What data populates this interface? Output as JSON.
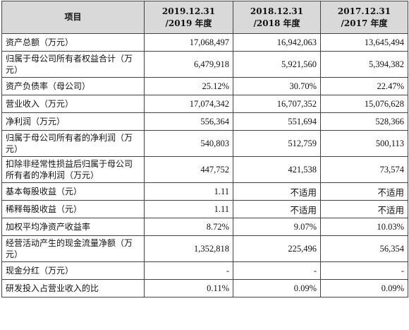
{
  "header": {
    "item_label": "项目",
    "columns": [
      {
        "line1": "2019.12.31",
        "line2": "/2019 年度"
      },
      {
        "line1": "2018.12.31",
        "line2": "/2018 年度"
      },
      {
        "line1": "2017.12.31",
        "line2": "/2017 年度"
      }
    ]
  },
  "rows": [
    {
      "label": "资产总额（万元）",
      "values": [
        "17,068,497",
        "16,942,063",
        "13,645,494"
      ]
    },
    {
      "label": "归属于母公司所有者权益合计（万元）",
      "values": [
        "6,479,918",
        "5,921,560",
        "5,394,382"
      ]
    },
    {
      "label": "资产负债率（母公司）",
      "values": [
        "25.12%",
        "30.70%",
        "22.47%"
      ]
    },
    {
      "label": "营业收入（万元）",
      "values": [
        "17,074,342",
        "16,707,352",
        "15,076,628"
      ]
    },
    {
      "label": "净利润（万元）",
      "values": [
        "556,364",
        "551,694",
        "528,366"
      ]
    },
    {
      "label": "归属于母公司所有者的净利润（万元）",
      "values": [
        "540,803",
        "512,759",
        "500,113"
      ]
    },
    {
      "label": "扣除非经常性损益后归属于母公司所有者的净利润（万元）",
      "values": [
        "447,752",
        "421,538",
        "73,574"
      ]
    },
    {
      "label": "基本每股收益（元）",
      "values": [
        "1.11",
        "不适用",
        "不适用"
      ]
    },
    {
      "label": "稀释每股收益（元）",
      "values": [
        "1.11",
        "不适用",
        "不适用"
      ]
    },
    {
      "label": "加权平均净资产收益率",
      "values": [
        "8.72%",
        "9.07%",
        "10.03%"
      ]
    },
    {
      "label": "经营活动产生的现金流量净额（万元）",
      "values": [
        "1,352,818",
        "225,496",
        "56,354"
      ]
    },
    {
      "label": "现金分红（万元）",
      "values": [
        "-",
        "-",
        "-"
      ]
    },
    {
      "label": "研发投入占营业收入的比",
      "values": [
        "0.11%",
        "0.09%",
        "0.09%"
      ]
    }
  ]
}
